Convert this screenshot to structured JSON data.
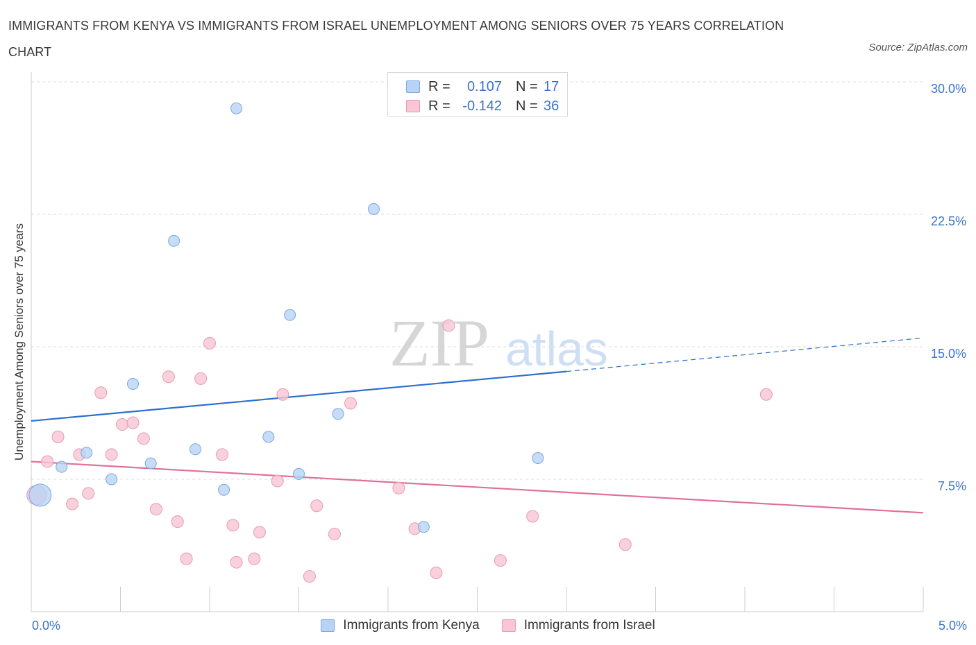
{
  "header": {
    "title": "IMMIGRANTS FROM KENYA VS IMMIGRANTS FROM ISRAEL UNEMPLOYMENT AMONG SENIORS OVER 75 YEARS CORRELATION CHART",
    "source": "Source: ZipAtlas.com"
  },
  "watermark": {
    "zip": "ZIP",
    "atlas": "atlas"
  },
  "colors": {
    "kenya_fill": "#b8d3f5",
    "kenya_stroke": "#7aa8e0",
    "kenya_line": "#2b6fcf",
    "israel_fill": "#f8c6d4",
    "israel_stroke": "#e89ab2",
    "israel_line": "#e0709a",
    "axis_text": "#3a73c8",
    "grid": "#dddddd"
  },
  "legend_top": {
    "rows": [
      {
        "r_label": "R =",
        "r_value": "0.107",
        "n_label": "N =",
        "n_value": "17"
      },
      {
        "r_label": "R =",
        "r_value": "-0.142",
        "n_label": "N =",
        "n_value": "36"
      }
    ]
  },
  "legend_bottom": {
    "kenya": "Immigrants from Kenya",
    "israel": "Immigrants from Israel"
  },
  "chart_data": {
    "type": "scatter",
    "title": "IMMIGRANTS FROM KENYA VS IMMIGRANTS FROM ISRAEL UNEMPLOYMENT AMONG SENIORS OVER 75 YEARS CORRELATION CHART",
    "xlabel": "",
    "ylabel": "Unemployment Among Seniors over 75 years",
    "xlim": [
      0,
      5
    ],
    "ylim": [
      0,
      30
    ],
    "x_tick_labels": [
      "0.0%",
      "5.0%"
    ],
    "y_ticks": [
      7.5,
      15,
      22.5,
      30
    ],
    "y_tick_labels": [
      "7.5%",
      "15.0%",
      "22.5%",
      "30.0%"
    ],
    "grid": true,
    "series": [
      {
        "name": "Immigrants from Kenya",
        "R": 0.107,
        "N": 17,
        "trend": {
          "x0": 0.0,
          "y0": 10.8,
          "x1": 3.0,
          "y1": 13.6,
          "dash_to_x": 5.0,
          "dash_to_y": 15.5
        },
        "points": [
          {
            "x": 0.05,
            "y": 6.6,
            "big": true
          },
          {
            "x": 0.17,
            "y": 8.2
          },
          {
            "x": 0.31,
            "y": 9.0
          },
          {
            "x": 0.45,
            "y": 7.5
          },
          {
            "x": 0.57,
            "y": 12.9
          },
          {
            "x": 0.67,
            "y": 8.4
          },
          {
            "x": 0.8,
            "y": 21.0
          },
          {
            "x": 0.92,
            "y": 9.2
          },
          {
            "x": 1.08,
            "y": 6.9
          },
          {
            "x": 1.15,
            "y": 28.5
          },
          {
            "x": 1.33,
            "y": 9.9
          },
          {
            "x": 1.45,
            "y": 16.8
          },
          {
            "x": 1.5,
            "y": 7.8
          },
          {
            "x": 1.72,
            "y": 11.2
          },
          {
            "x": 1.92,
            "y": 22.8
          },
          {
            "x": 2.2,
            "y": 4.8
          },
          {
            "x": 2.84,
            "y": 8.7
          }
        ]
      },
      {
        "name": "Immigrants from Israel",
        "R": -0.142,
        "N": 36,
        "trend": {
          "x0": 0.0,
          "y0": 8.5,
          "x1": 5.0,
          "y1": 5.6
        },
        "points": [
          {
            "x": 0.03,
            "y": 6.6
          },
          {
            "x": 0.09,
            "y": 8.5
          },
          {
            "x": 0.15,
            "y": 9.9
          },
          {
            "x": 0.23,
            "y": 6.1
          },
          {
            "x": 0.27,
            "y": 8.9
          },
          {
            "x": 0.32,
            "y": 6.7
          },
          {
            "x": 0.39,
            "y": 12.4
          },
          {
            "x": 0.45,
            "y": 8.9
          },
          {
            "x": 0.51,
            "y": 10.6
          },
          {
            "x": 0.57,
            "y": 10.7
          },
          {
            "x": 0.63,
            "y": 9.8
          },
          {
            "x": 0.7,
            "y": 5.8
          },
          {
            "x": 0.77,
            "y": 13.3
          },
          {
            "x": 0.82,
            "y": 5.1
          },
          {
            "x": 0.87,
            "y": 3.0
          },
          {
            "x": 0.95,
            "y": 13.2
          },
          {
            "x": 1.0,
            "y": 15.2
          },
          {
            "x": 1.07,
            "y": 8.9
          },
          {
            "x": 1.13,
            "y": 4.9
          },
          {
            "x": 1.15,
            "y": 2.8
          },
          {
            "x": 1.25,
            "y": 3.0
          },
          {
            "x": 1.28,
            "y": 4.5
          },
          {
            "x": 1.38,
            "y": 7.4
          },
          {
            "x": 1.41,
            "y": 12.3
          },
          {
            "x": 1.56,
            "y": 2.0
          },
          {
            "x": 1.6,
            "y": 6.0
          },
          {
            "x": 1.7,
            "y": 4.4
          },
          {
            "x": 1.79,
            "y": 11.8
          },
          {
            "x": 2.06,
            "y": 7.0
          },
          {
            "x": 2.15,
            "y": 4.7
          },
          {
            "x": 2.27,
            "y": 2.2
          },
          {
            "x": 2.34,
            "y": 16.2
          },
          {
            "x": 2.63,
            "y": 2.9
          },
          {
            "x": 2.81,
            "y": 5.4
          },
          {
            "x": 3.33,
            "y": 3.8
          },
          {
            "x": 4.12,
            "y": 12.3
          }
        ]
      }
    ]
  }
}
